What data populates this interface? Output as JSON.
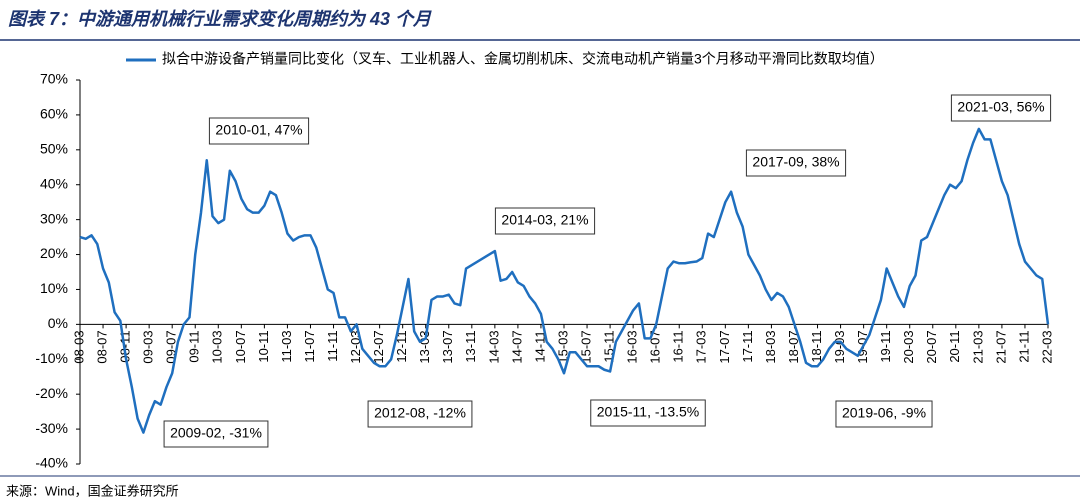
{
  "chart_data": {
    "type": "line",
    "title": "图表 7：中游通用机械行业需求变化周期约为 43 个月",
    "source": "来源：Wind，国金证券研究所",
    "categories": [
      "08-03",
      null,
      null,
      null,
      "08-07",
      null,
      null,
      null,
      "08-11",
      null,
      null,
      null,
      "09-03",
      null,
      null,
      null,
      "09-07",
      null,
      null,
      null,
      "09-11",
      null,
      null,
      null,
      "10-03",
      null,
      null,
      null,
      "10-07",
      null,
      null,
      null,
      "10-11",
      null,
      null,
      null,
      "11-03",
      null,
      null,
      null,
      "11-07",
      null,
      null,
      null,
      "11-11",
      null,
      null,
      null,
      "12-03",
      null,
      null,
      null,
      "12-07",
      null,
      null,
      null,
      "12-11",
      null,
      null,
      null,
      "13-03",
      null,
      null,
      null,
      "13-07",
      null,
      null,
      null,
      "13-11",
      null,
      null,
      null,
      "14-03",
      null,
      null,
      null,
      "14-07",
      null,
      null,
      null,
      "14-11",
      null,
      null,
      null,
      "15-03",
      null,
      null,
      null,
      "15-07",
      null,
      null,
      null,
      "15-11",
      null,
      null,
      null,
      "16-03",
      null,
      null,
      null,
      "16-07",
      null,
      null,
      null,
      "16-11",
      null,
      null,
      null,
      "17-03",
      null,
      null,
      null,
      "17-07",
      null,
      null,
      null,
      "17-11",
      null,
      null,
      null,
      "18-03",
      null,
      null,
      null,
      "18-07",
      null,
      null,
      null,
      "18-11",
      null,
      null,
      null,
      "19-03",
      null,
      null,
      null,
      "19-07",
      null,
      null,
      null,
      "19-11",
      null,
      null,
      null,
      "20-03",
      null,
      null,
      null,
      "20-07",
      null,
      null,
      null,
      "20-11",
      null,
      null,
      null,
      "21-03",
      null,
      null,
      null,
      "21-07",
      null,
      null,
      null,
      "21-11",
      null,
      null,
      null,
      "22-03"
    ],
    "series": [
      {
        "name": "拟合中游设备产销量同比变化（叉车、工业机器人、金属切削机床、交流电动机产销量3个月移动平滑同比数取均值）",
        "color": "#1f6fbf",
        "values": [
          25,
          24.5,
          25.5,
          23,
          16,
          12,
          3.5,
          1,
          -10,
          -18,
          -27,
          -31,
          -26,
          -22,
          -23,
          -18,
          -14,
          -5,
          0,
          2,
          20,
          32,
          47,
          31,
          29,
          30,
          44,
          41,
          36,
          33,
          32,
          32,
          34,
          38,
          37,
          32,
          26,
          24,
          25,
          25.5,
          25.5,
          22,
          16,
          10,
          9,
          2,
          2,
          -2,
          0,
          -7,
          -9,
          -11,
          -12,
          -12,
          -10,
          -3,
          5,
          13,
          -2,
          -5,
          -4,
          7,
          8,
          8,
          8.5,
          6,
          5.5,
          16,
          17,
          18,
          19,
          20,
          21,
          12.5,
          13,
          15,
          12,
          11,
          8,
          6,
          3,
          -5,
          -7,
          -10,
          -14,
          -8,
          -8,
          -10,
          -12,
          -12,
          -12,
          -13,
          -13.5,
          -5,
          -2,
          1,
          4,
          6,
          -4,
          -4,
          0,
          8,
          16,
          18,
          17.5,
          17.5,
          17.8,
          18,
          19,
          26,
          25,
          30,
          35,
          38,
          32,
          28,
          20,
          17,
          14,
          10,
          7,
          9,
          8,
          5,
          0,
          -5,
          -11,
          -12,
          -12,
          -10,
          -7,
          -5,
          -5,
          -7,
          -8,
          -9,
          -6,
          -3,
          2,
          7,
          16,
          12,
          8,
          5,
          11,
          14,
          24,
          25,
          29,
          33,
          37,
          40,
          39,
          41,
          47,
          52,
          56,
          53,
          53,
          47,
          41,
          37,
          30,
          23,
          18,
          16,
          14,
          13,
          0
        ]
      }
    ],
    "ylim": [
      -40,
      70
    ],
    "yticks": [
      {
        "value": -40,
        "label": "-40%"
      },
      {
        "value": -30,
        "label": "-30%"
      },
      {
        "value": -20,
        "label": "-20%"
      },
      {
        "value": -10,
        "label": "-10%"
      },
      {
        "value": 0,
        "label": "0%"
      },
      {
        "value": 10,
        "label": "10%"
      },
      {
        "value": 20,
        "label": "20%"
      },
      {
        "value": 30,
        "label": "30%"
      },
      {
        "value": 40,
        "label": "40%"
      },
      {
        "value": 50,
        "label": "50%"
      },
      {
        "value": 60,
        "label": "60%"
      },
      {
        "value": 70,
        "label": "70%"
      }
    ],
    "annotations": [
      "2010-01, 47%",
      "2009-02, -31%",
      "2012-08, -12%",
      "2014-03, 21%",
      "2015-11, -13.5%",
      "2017-09, 38%",
      "2019-06, -9%",
      "2021-03, 56%"
    ]
  }
}
